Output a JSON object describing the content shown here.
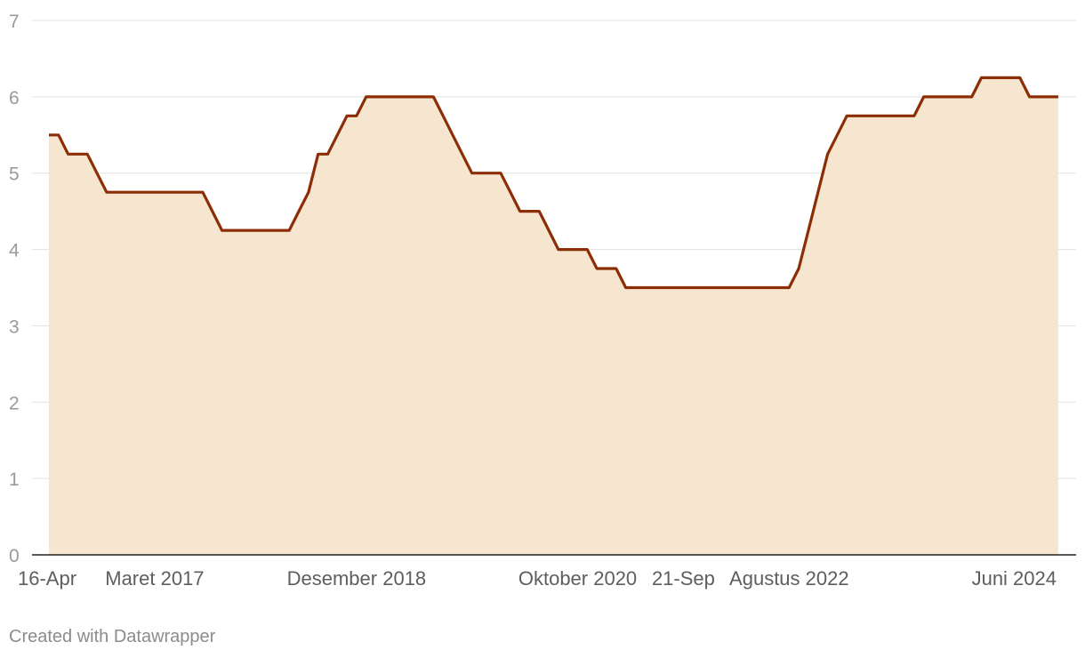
{
  "chart_data": {
    "type": "area",
    "title": "",
    "xlabel": "",
    "ylabel": "",
    "ylim": [
      0,
      7
    ],
    "yticks": [
      0,
      1,
      2,
      3,
      4,
      5,
      6,
      7
    ],
    "grid": true,
    "colors": {
      "line": "#8b2e06",
      "fill": "#f7e6cf",
      "grid": "#e3e3e3",
      "axis": "#222222"
    },
    "x_labels": [
      {
        "label": "16-Apr",
        "index": 0
      },
      {
        "label": "Maret 2017",
        "index": 11
      },
      {
        "label": "Desember 2018",
        "index": 32
      },
      {
        "label": "Oktober 2020",
        "index": 55
      },
      {
        "label": "21-Sep",
        "index": 66
      },
      {
        "label": "Agustus 2022",
        "index": 77
      },
      {
        "label": "Juni 2024",
        "index": 99
      }
    ],
    "series": [
      {
        "values": [
          5.5,
          5.5,
          5.25,
          5.25,
          5.25,
          5.0,
          4.75,
          4.75,
          4.75,
          4.75,
          4.75,
          4.75,
          4.75,
          4.75,
          4.75,
          4.75,
          4.75,
          4.5,
          4.25,
          4.25,
          4.25,
          4.25,
          4.25,
          4.25,
          4.25,
          4.25,
          4.5,
          4.75,
          5.25,
          5.25,
          5.5,
          5.75,
          5.75,
          6.0,
          6.0,
          6.0,
          6.0,
          6.0,
          6.0,
          6.0,
          6.0,
          5.75,
          5.5,
          5.25,
          5.0,
          5.0,
          5.0,
          5.0,
          4.75,
          4.5,
          4.5,
          4.5,
          4.25,
          4.0,
          4.0,
          4.0,
          4.0,
          3.75,
          3.75,
          3.75,
          3.5,
          3.5,
          3.5,
          3.5,
          3.5,
          3.5,
          3.5,
          3.5,
          3.5,
          3.5,
          3.5,
          3.5,
          3.5,
          3.5,
          3.5,
          3.5,
          3.5,
          3.5,
          3.75,
          4.25,
          4.75,
          5.25,
          5.5,
          5.75,
          5.75,
          5.75,
          5.75,
          5.75,
          5.75,
          5.75,
          5.75,
          6.0,
          6.0,
          6.0,
          6.0,
          6.0,
          6.0,
          6.25,
          6.25,
          6.25,
          6.25,
          6.25,
          6.0,
          6.0,
          6.0,
          6.0
        ]
      }
    ]
  },
  "credit": "Created with Datawrapper"
}
